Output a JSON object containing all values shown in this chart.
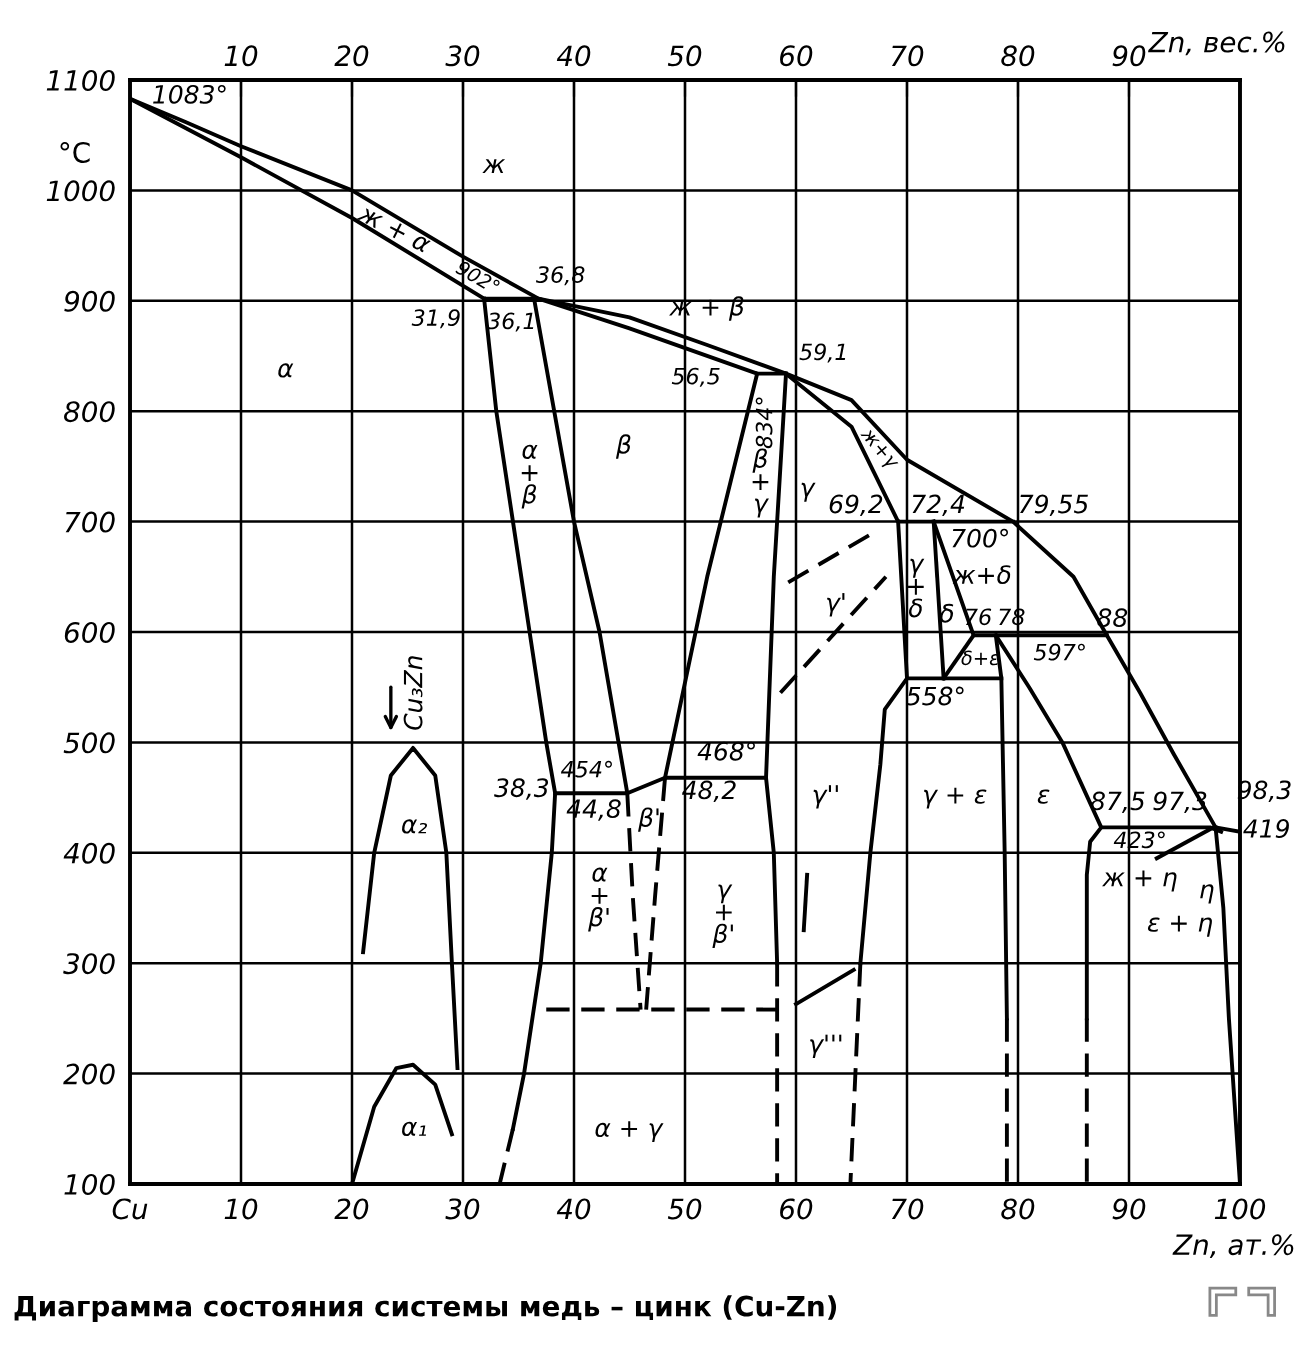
{
  "chart_data": {
    "type": "line",
    "xlabel": "Zn, ат.%",
    "x2label": "Zn, вес.%",
    "ylabel": "°C",
    "xlim": [
      0,
      100
    ],
    "xticks": [
      {
        "value": 0,
        "label": "Cu"
      },
      10,
      20,
      30,
      40,
      50,
      60,
      70,
      80,
      90,
      100
    ],
    "x2lim": [
      0,
      100
    ],
    "x2ticks": [
      10,
      20,
      30,
      40,
      50,
      60,
      70,
      80,
      90
    ],
    "ylim": [
      100,
      1100
    ],
    "yticks": [
      100,
      200,
      300,
      400,
      500,
      600,
      700,
      800,
      900,
      1000,
      1100
    ],
    "grid": true,
    "series": [
      {
        "color": "#000000",
        "line_style": "solid",
        "x": [
          0,
          5,
          10,
          20,
          30,
          36.8,
          45,
          52,
          59.1,
          65,
          70,
          79.55,
          85,
          88,
          91,
          94,
          97.8,
          100
        ],
        "values": [
          1083,
          1062,
          1040,
          1000,
          940,
          902,
          885,
          860,
          834,
          810,
          756,
          700,
          650,
          597,
          545,
          490,
          423,
          419
        ]
      },
      {
        "color": "#000000",
        "line_style": "solid",
        "x": [
          0,
          10,
          20,
          31.9,
          36.8,
          45,
          56.5,
          59.1
        ],
        "values": [
          1083,
          1030,
          975,
          902,
          902,
          875,
          834,
          834
        ]
      },
      {
        "color": "#000000",
        "line_style": "solid",
        "x": [
          31.9,
          33,
          34.5,
          36,
          37.5,
          38.3,
          38,
          37,
          35.5,
          34.5
        ],
        "values": [
          902,
          800,
          700,
          600,
          500,
          454,
          400,
          300,
          200,
          150
        ]
      },
      {
        "color": "#000000",
        "line_style": "dashed",
        "x": [
          34.5,
          33.3
        ],
        "values": [
          150,
          100
        ]
      },
      {
        "color": "#000000",
        "line_style": "solid",
        "x": [
          36.4,
          40,
          42.3,
          44.8,
          38.3
        ],
        "values": [
          902,
          700,
          600,
          454,
          454
        ]
      },
      {
        "color": "#000000",
        "line_style": "solid",
        "x": [
          44.8,
          48.2,
          57.3
        ],
        "values": [
          454,
          468,
          468
        ]
      },
      {
        "color": "#000000",
        "line_style": "solid",
        "x": [
          56.5,
          52,
          48.2
        ],
        "values": [
          834,
          650,
          468
        ]
      },
      {
        "color": "#000000",
        "line_style": "solid",
        "x": [
          59.1,
          58,
          57.3,
          58,
          58.3
        ],
        "values": [
          834,
          650,
          468,
          400,
          300
        ]
      },
      {
        "color": "#000000",
        "line_style": "dashed",
        "x": [
          58.3,
          58.3
        ],
        "values": [
          300,
          100
        ]
      },
      {
        "color": "#000000",
        "line_style": "dashed",
        "x": [
          44.8,
          45.3,
          46
        ],
        "values": [
          454,
          360,
          258
        ]
      },
      {
        "color": "#000000",
        "line_style": "dashed",
        "x": [
          48.2,
          47.3,
          46.5
        ],
        "values": [
          468,
          360,
          258
        ]
      },
      {
        "color": "#000000",
        "line_style": "dashed",
        "x": [
          37.5,
          58.3
        ],
        "values": [
          258,
          258
        ]
      },
      {
        "color": "#000000",
        "line_style": "solid",
        "x": [
          59.1,
          65,
          67,
          69.2,
          79.55
        ],
        "values": [
          834,
          786,
          745,
          700,
          700
        ]
      },
      {
        "color": "#000000",
        "line_style": "solid",
        "x": [
          69.2,
          70,
          78.5
        ],
        "values": [
          700,
          558,
          558
        ]
      },
      {
        "color": "#000000",
        "line_style": "solid",
        "x": [
          70,
          68,
          67.6,
          66.7,
          65.8
        ],
        "values": [
          558,
          530,
          480,
          400,
          300
        ]
      },
      {
        "color": "#000000",
        "line_style": "dashed",
        "x": [
          65.8,
          64.9
        ],
        "values": [
          300,
          100
        ]
      },
      {
        "color": "#000000",
        "line_style": "solid",
        "x": [
          72.4,
          73.3
        ],
        "values": [
          700,
          558
        ]
      },
      {
        "color": "#000000",
        "line_style": "solid",
        "x": [
          72.4,
          76,
          88
        ],
        "values": [
          700,
          597,
          597
        ]
      },
      {
        "color": "#000000",
        "line_style": "solid",
        "x": [
          76,
          73.3
        ],
        "values": [
          597,
          558
        ]
      },
      {
        "color": "#000000",
        "line_style": "solid",
        "x": [
          78,
          78.5,
          78.8,
          79
        ],
        "values": [
          597,
          558,
          400,
          250
        ]
      },
      {
        "color": "#000000",
        "line_style": "dashed",
        "x": [
          79,
          79
        ],
        "values": [
          250,
          100
        ]
      },
      {
        "color": "#000000",
        "line_style": "solid",
        "x": [
          78,
          81,
          84,
          87.5,
          97.3,
          98.3
        ],
        "values": [
          597,
          550,
          500,
          423,
          423,
          419
        ]
      },
      {
        "color": "#000000",
        "line_style": "solid",
        "x": [
          87.5,
          86.5,
          86.2,
          86.2
        ],
        "values": [
          423,
          410,
          380,
          250
        ]
      },
      {
        "color": "#000000",
        "line_style": "dashed",
        "x": [
          86.2,
          86.2
        ],
        "values": [
          250,
          100
        ]
      },
      {
        "color": "#000000",
        "line_style": "solid",
        "x": [
          97.8,
          98.5,
          99,
          100
        ],
        "values": [
          423,
          350,
          250,
          100
        ]
      },
      {
        "color": "#000000",
        "line_style": "solid",
        "x": [
          92.5,
          97.6
        ],
        "values": [
          395,
          423
        ]
      },
      {
        "color": "#000000",
        "line_style": "solid",
        "x": [
          21,
          22,
          23.5,
          25.5,
          27.5,
          28.5,
          29,
          29.5
        ],
        "values": [
          310,
          400,
          470,
          495,
          470,
          400,
          300,
          205
        ]
      },
      {
        "color": "#000000",
        "line_style": "solid",
        "x": [
          20,
          22,
          24,
          25.5,
          27.5,
          29
        ],
        "values": [
          100,
          170,
          205,
          208,
          190,
          145
        ]
      },
      {
        "color": "#000000",
        "line_style": "dashed",
        "x": [
          59.3,
          67
        ],
        "values": [
          645,
          690
        ]
      },
      {
        "color": "#000000",
        "line_style": "dashed",
        "x": [
          58.6,
          68.1
        ],
        "values": [
          545,
          650
        ]
      },
      {
        "color": "#000000",
        "line_style": "solid",
        "x": [
          60,
          65.2
        ],
        "values": [
          263,
          294
        ]
      },
      {
        "color": "#000000",
        "line_style": "solid",
        "x": [
          61,
          60.7
        ],
        "values": [
          380,
          330
        ]
      }
    ],
    "annotations": [
      "Диаграмма состояния системы медь – цинк (Cu-Zn)",
      "1083°",
      "ж",
      "ж + α",
      "902°",
      "36,8",
      "31,9",
      "36,1",
      "α",
      "α\n+\nβ",
      "β",
      "ж + β",
      "56,5",
      "834°",
      "59,1",
      "β\n+\nγ",
      "γ",
      "ж+γ",
      "69,2",
      "72,4",
      "79,55",
      "700°",
      "γ'",
      "γ\n+\nδ",
      "δ",
      "ж+δ",
      "76",
      "78",
      "88",
      "597°",
      "δ+ε",
      "558°",
      "38,3",
      "454°",
      "44,8",
      "β'",
      "48,2",
      "468°",
      "γ''",
      "γ + ε",
      "ε",
      "87,5",
      "97,3",
      "98,3",
      "419",
      "423°",
      "ж + η",
      "η",
      "ε + η",
      "α\n+\nβ'",
      "γ\n+\nβ'",
      "γ'''",
      "α + γ",
      "α₂",
      "α₁",
      "Cu₃Zn"
    ]
  }
}
